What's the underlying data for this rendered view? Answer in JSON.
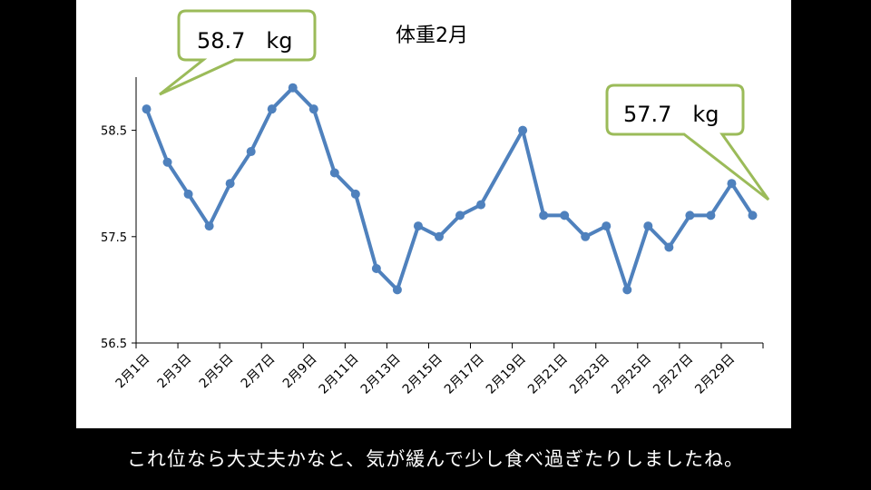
{
  "chart_data": {
    "type": "line",
    "title": "体重2月",
    "categories": [
      "2月1日",
      "2月2日",
      "2月3日",
      "2月4日",
      "2月5日",
      "2月6日",
      "2月7日",
      "2月8日",
      "2月9日",
      "2月10日",
      "2月11日",
      "2月12日",
      "2月13日",
      "2月14日",
      "2月15日",
      "2月16日",
      "2月17日",
      "2月18日",
      "2月19日",
      "2月20日",
      "2月21日",
      "2月22日",
      "2月23日",
      "2月24日",
      "2月25日",
      "2月26日",
      "2月27日",
      "2月28日",
      "2月29日",
      "2月30日"
    ],
    "shown_tick_labels": [
      "2月1日",
      "2月3日",
      "2月5日",
      "2月7日",
      "2月9日",
      "2月11日",
      "2月13日",
      "2月15日",
      "2月17日",
      "2月19日",
      "2月21日",
      "2月23日",
      "2月25日",
      "2月27日",
      "2月29日"
    ],
    "values": [
      58.7,
      58.2,
      57.9,
      57.6,
      58.0,
      58.3,
      58.7,
      58.9,
      58.7,
      58.1,
      57.9,
      57.2,
      57.0,
      57.6,
      57.5,
      57.7,
      57.8,
      null,
      58.5,
      57.7,
      57.7,
      57.5,
      57.6,
      57.0,
      57.6,
      57.4,
      57.7,
      57.7,
      58.0,
      57.7
    ],
    "ylim": [
      56.5,
      59.0
    ],
    "yticks": [
      "56.5",
      "57.5",
      "58.5"
    ],
    "xlabel": "",
    "ylabel": "",
    "grid": false,
    "line_color": "#4f81bd"
  },
  "callouts": [
    {
      "text": "58.7   kg",
      "border_color": "#9bbb59"
    },
    {
      "text": "57.7   kg",
      "border_color": "#9bbb59"
    }
  ],
  "caption": "これ位なら大丈夫かなと、気が緩んで少し食べ過ぎたりしましたね。"
}
